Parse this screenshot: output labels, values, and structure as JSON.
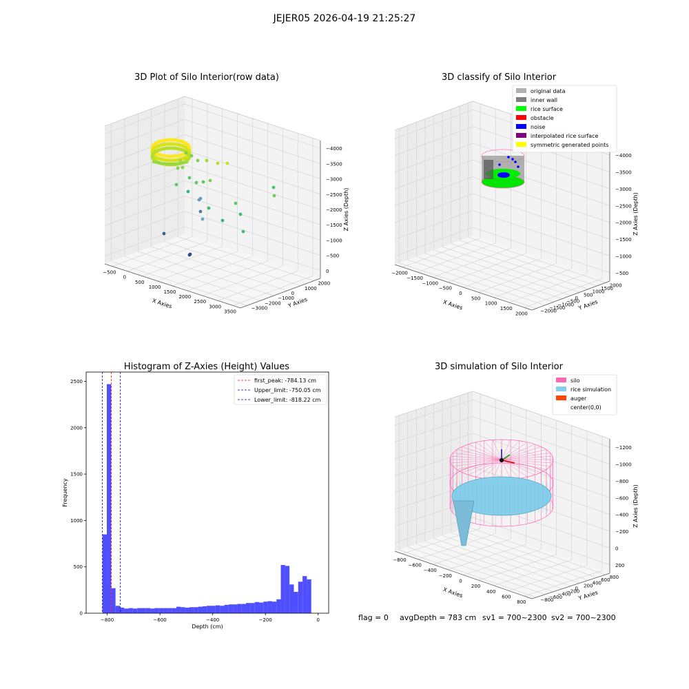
{
  "figure": {
    "suptitle": "JEJER05 2026-04-19 21:25:27",
    "status": {
      "flag": "flag = 0",
      "avg_depth": "avgDepth = 783 cm",
      "sv1": "sv1 = 700~2300",
      "sv2": "sv2 = 700~2300"
    }
  },
  "chart_data": [
    {
      "type": "scatter",
      "projection": "3d",
      "title": "3D Plot of Silo Interior(row data)",
      "xlabel": "X Axies",
      "ylabel": "Y Axies",
      "zlabel": "Z Axies (Depth)",
      "xticks": [
        "−500",
        "0",
        "500",
        "1000",
        "1500",
        "2000",
        "2500",
        "3000",
        "3500"
      ],
      "yticks": [
        "−3000",
        "−2000",
        "−1000",
        "0",
        "1000",
        "2000"
      ],
      "zticks": [
        "0",
        "−500",
        "−1000",
        "−1500",
        "−2000",
        "−2500",
        "−3000",
        "−3500",
        "−4000"
      ],
      "grid": true,
      "colormap": "viridis (by depth)",
      "series": [
        {
          "cluster": "dense ring near surface",
          "color": "#dfe318"
        },
        {
          "cluster": "scattered points",
          "color": "#5ec962"
        },
        {
          "cluster": "deep points",
          "color": "#3b528b"
        }
      ]
    },
    {
      "type": "scatter",
      "projection": "3d",
      "title": "3D classify of Silo Interior",
      "xlabel": "X Axies",
      "ylabel": "Y Axies",
      "zlabel": "Z Axies (Depth)",
      "xticks": [
        "−2000",
        "−1500",
        "−1000",
        "−500",
        "0",
        "500",
        "1000",
        "1500",
        "2000"
      ],
      "yticks": [
        "−2000",
        "−1500",
        "−1000",
        "−500",
        "0",
        "500",
        "1000",
        "1500",
        "2000"
      ],
      "zticks": [
        "−500",
        "−1000",
        "−1500",
        "−2000",
        "−2500",
        "−3000",
        "−3500",
        "−4000"
      ],
      "grid": true,
      "legend_position": "upper right",
      "legend": [
        {
          "label": "original data",
          "color": "#b0b0b0"
        },
        {
          "label": "inner wall",
          "color": "#808080"
        },
        {
          "label": "rice surface",
          "color": "#00ff00"
        },
        {
          "label": "obstacle",
          "color": "#ff0000"
        },
        {
          "label": "noise",
          "color": "#0000ff"
        },
        {
          "label": "interpolated rice surface",
          "color": "#800080"
        },
        {
          "label": "symmetric generated points",
          "color": "#ffff00"
        }
      ]
    },
    {
      "type": "bar",
      "title": "Histogram of Z-Axies (Height) Values",
      "xlabel": "Depth (cm)",
      "ylabel": "Frequency",
      "xlim": [
        -880,
        40
      ],
      "ylim": [
        0,
        2600
      ],
      "xticks": [
        -800,
        -600,
        -400,
        -200,
        0
      ],
      "yticks": [
        0,
        500,
        1000,
        1500,
        2000,
        2500
      ],
      "bar_color": "#4f4fff",
      "bin_width": 16.5,
      "bin_start": -818,
      "values": [
        850,
        2470,
        270,
        80,
        60,
        50,
        55,
        50,
        55,
        55,
        55,
        50,
        55,
        55,
        55,
        55,
        55,
        70,
        65,
        60,
        65,
        65,
        70,
        75,
        80,
        80,
        85,
        80,
        90,
        95,
        95,
        100,
        100,
        110,
        110,
        120,
        115,
        125,
        130,
        125,
        150,
        520,
        510,
        310,
        230,
        340,
        400,
        365
      ],
      "reference_lines": [
        {
          "label": "first_peak: -784.13 cm",
          "x": -784.13,
          "color": "#ff0000"
        },
        {
          "label": "Upper_limit: -750.05 cm",
          "x": -750.05,
          "color": "#0000aa"
        },
        {
          "label": "Lower_limit: -818.22 cm",
          "x": -818.22,
          "color": "#0000aa"
        }
      ],
      "legend_position": "upper right"
    },
    {
      "type": "surface",
      "projection": "3d",
      "title": "3D simulation of Silo Interior",
      "xlabel": "X Axies",
      "ylabel": "Y Axies",
      "zlabel": "Z Axies (Depth)",
      "xticks": [
        "−800",
        "−600",
        "−400",
        "−200",
        "0",
        "200",
        "400",
        "600",
        "800"
      ],
      "yticks": [
        "−800",
        "−600",
        "−400",
        "−200",
        "0",
        "200",
        "400",
        "600",
        "800"
      ],
      "zticks": [
        "200",
        "0",
        "−200",
        "−400",
        "−600",
        "−800",
        "−1000",
        "−1200"
      ],
      "grid": true,
      "legend_position": "upper right",
      "legend": [
        {
          "label": "silo",
          "color": "#ff69b4"
        },
        {
          "label": "rice simulation",
          "color": "#87ceeb"
        },
        {
          "label": "auger",
          "color": "#ff4500"
        },
        {
          "label": "center(0,0)",
          "color": "#ffffff"
        }
      ]
    }
  ]
}
